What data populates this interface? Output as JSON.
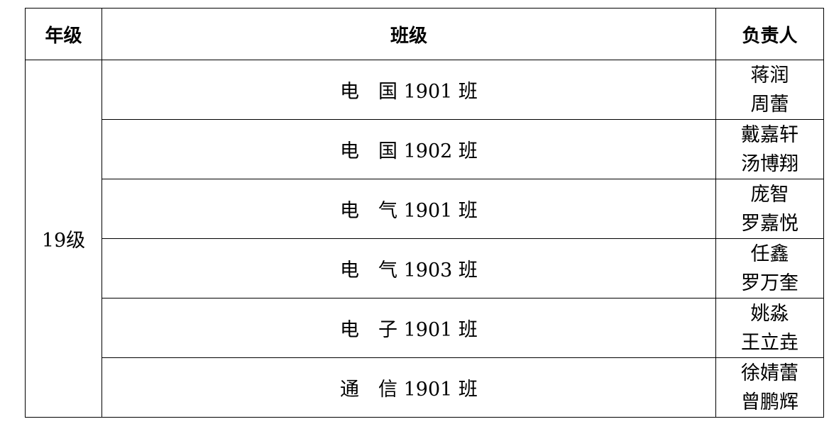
{
  "headers": {
    "grade": "年级",
    "class": "班级",
    "responsible": "负责人"
  },
  "grade": "19级",
  "rows": [
    {
      "class": "电　国 1901 班",
      "people": [
        "蒋润",
        "周蕾"
      ]
    },
    {
      "class": "电　国 1902 班",
      "people": [
        "戴嘉轩",
        "汤博翔"
      ]
    },
    {
      "class": "电　气 1901 班",
      "people": [
        "庞智",
        "罗嘉悦"
      ]
    },
    {
      "class": "电　气 1903 班",
      "people": [
        "任鑫",
        "罗万奎"
      ]
    },
    {
      "class": "电　子 1901 班",
      "people": [
        "姚淼",
        "王立垚"
      ]
    },
    {
      "class": "通　信 1901 班",
      "people": [
        "徐婧蕾",
        "曾鹏辉"
      ]
    }
  ]
}
